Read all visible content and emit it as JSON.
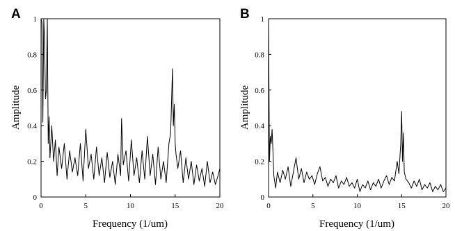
{
  "chart_data": [
    {
      "type": "line",
      "panel_label": "A",
      "xlabel": "Frequency (1/um)",
      "ylabel": "Amplitude",
      "xlim": [
        0,
        20
      ],
      "ylim": [
        0,
        1
      ],
      "xticks": [
        0,
        5,
        10,
        15,
        20
      ],
      "yticks": [
        0,
        0.2,
        0.4,
        0.6,
        0.8,
        1
      ],
      "xtick_labels": [
        "0",
        "5",
        "10",
        "15",
        "20"
      ],
      "ytick_labels": [
        "0",
        "0.2",
        "0.4",
        "0.6",
        "0.8",
        "1"
      ],
      "grid": false,
      "series": [
        {
          "x": [
            0.0,
            0.1,
            0.2,
            0.3,
            0.4,
            0.5,
            0.6,
            0.7,
            0.8,
            0.9,
            1.0,
            1.2,
            1.4,
            1.6,
            1.8,
            2.0,
            2.3,
            2.6,
            2.9,
            3.2,
            3.5,
            3.8,
            4.1,
            4.4,
            4.7,
            5.0,
            5.3,
            5.6,
            5.9,
            6.2,
            6.5,
            6.8,
            7.1,
            7.4,
            7.7,
            8.0,
            8.3,
            8.6,
            8.9,
            9.0,
            9.2,
            9.5,
            9.8,
            10.1,
            10.4,
            10.7,
            11.0,
            11.3,
            11.6,
            11.9,
            12.2,
            12.5,
            12.8,
            13.1,
            13.4,
            13.7,
            14.0,
            14.3,
            14.5,
            14.7,
            14.8,
            14.9,
            15.0,
            15.1,
            15.3,
            15.6,
            15.9,
            16.2,
            16.5,
            16.8,
            17.1,
            17.4,
            17.7,
            18.0,
            18.3,
            18.6,
            18.9,
            19.2,
            19.5,
            19.8,
            20.0
          ],
          "y": [
            1.0,
            0.98,
            0.42,
            1.0,
            0.88,
            0.55,
            0.6,
            1.0,
            0.3,
            0.45,
            0.22,
            0.4,
            0.2,
            0.32,
            0.12,
            0.28,
            0.16,
            0.3,
            0.1,
            0.26,
            0.14,
            0.22,
            0.12,
            0.3,
            0.09,
            0.38,
            0.16,
            0.24,
            0.1,
            0.28,
            0.12,
            0.22,
            0.08,
            0.25,
            0.11,
            0.2,
            0.07,
            0.24,
            0.12,
            0.44,
            0.18,
            0.26,
            0.09,
            0.32,
            0.12,
            0.22,
            0.08,
            0.26,
            0.1,
            0.34,
            0.12,
            0.24,
            0.07,
            0.28,
            0.1,
            0.2,
            0.08,
            0.3,
            0.36,
            0.72,
            0.4,
            0.52,
            0.3,
            0.24,
            0.16,
            0.26,
            0.08,
            0.22,
            0.1,
            0.2,
            0.07,
            0.18,
            0.09,
            0.16,
            0.06,
            0.2,
            0.08,
            0.14,
            0.07,
            0.12,
            0.16
          ]
        }
      ]
    },
    {
      "type": "line",
      "panel_label": "B",
      "xlabel": "Frequency (1/um)",
      "ylabel": "Amplitude",
      "xlim": [
        0,
        20
      ],
      "ylim": [
        0,
        1
      ],
      "xticks": [
        0,
        5,
        10,
        15,
        20
      ],
      "yticks": [
        0,
        0.2,
        0.4,
        0.6,
        0.8,
        1
      ],
      "xtick_labels": [
        "0",
        "5",
        "10",
        "15",
        "20"
      ],
      "ytick_labels": [
        "0",
        "0.2",
        "0.4",
        "0.6",
        "0.8",
        "1"
      ],
      "grid": false,
      "series": [
        {
          "x": [
            0.0,
            0.1,
            0.2,
            0.3,
            0.4,
            0.5,
            0.6,
            0.8,
            1.0,
            1.3,
            1.6,
            1.9,
            2.2,
            2.5,
            2.8,
            3.1,
            3.4,
            3.7,
            4.0,
            4.3,
            4.6,
            4.9,
            5.2,
            5.5,
            5.8,
            6.1,
            6.4,
            6.7,
            7.0,
            7.3,
            7.6,
            7.9,
            8.2,
            8.5,
            8.8,
            9.1,
            9.4,
            9.7,
            10.0,
            10.3,
            10.6,
            10.9,
            11.2,
            11.5,
            11.8,
            12.1,
            12.4,
            12.7,
            13.0,
            13.3,
            13.6,
            13.9,
            14.2,
            14.5,
            14.7,
            14.9,
            15.0,
            15.1,
            15.2,
            15.3,
            15.5,
            15.8,
            16.1,
            16.4,
            16.7,
            17.0,
            17.3,
            17.6,
            17.9,
            18.2,
            18.5,
            18.8,
            19.1,
            19.4,
            19.7,
            20.0
          ],
          "y": [
            1.0,
            0.2,
            0.34,
            0.3,
            0.38,
            0.25,
            0.12,
            0.05,
            0.14,
            0.08,
            0.15,
            0.1,
            0.17,
            0.06,
            0.14,
            0.22,
            0.1,
            0.16,
            0.08,
            0.14,
            0.1,
            0.12,
            0.07,
            0.13,
            0.17,
            0.09,
            0.11,
            0.06,
            0.1,
            0.08,
            0.12,
            0.05,
            0.09,
            0.07,
            0.11,
            0.06,
            0.08,
            0.05,
            0.1,
            0.03,
            0.07,
            0.05,
            0.09,
            0.04,
            0.08,
            0.06,
            0.1,
            0.05,
            0.09,
            0.12,
            0.07,
            0.11,
            0.09,
            0.2,
            0.13,
            0.3,
            0.48,
            0.2,
            0.36,
            0.14,
            0.1,
            0.08,
            0.05,
            0.09,
            0.06,
            0.1,
            0.04,
            0.07,
            0.05,
            0.08,
            0.03,
            0.06,
            0.04,
            0.07,
            0.03,
            0.05
          ]
        }
      ]
    }
  ]
}
